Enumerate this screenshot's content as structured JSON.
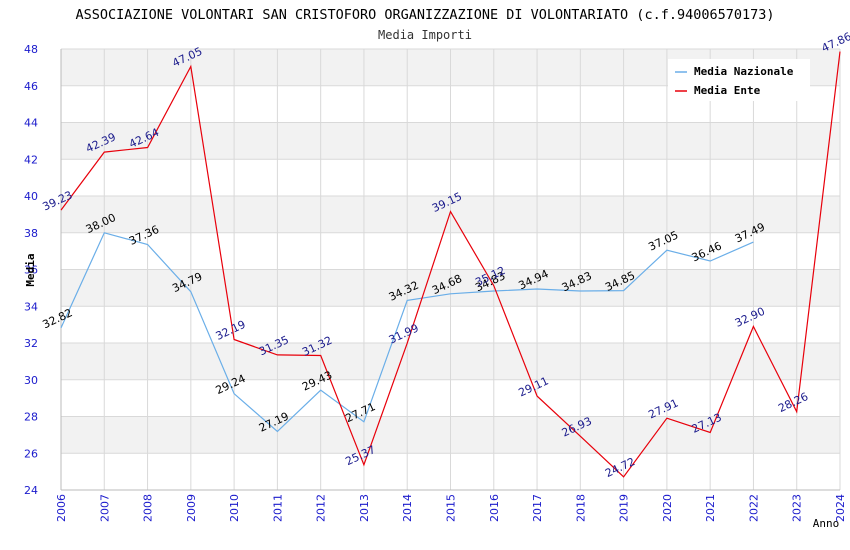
{
  "chart_data": {
    "type": "line",
    "title": "ASSOCIAZIONE VOLONTARI SAN CRISTOFORO ORGANIZZAZIONE DI VOLONTARIATO (c.f.94006570173)",
    "subtitle": "Media Importi",
    "xlabel": "Anno",
    "ylabel": "Media",
    "ylim": [
      24,
      48
    ],
    "yticks": [
      "24",
      "26",
      "28",
      "30",
      "32",
      "34",
      "36",
      "38",
      "40",
      "42",
      "44",
      "46",
      "48"
    ],
    "categories": [
      "2006",
      "2007",
      "2008",
      "2009",
      "2010",
      "2011",
      "2012",
      "2013",
      "2014",
      "2015",
      "2016",
      "2017",
      "2018",
      "2019",
      "2020",
      "2021",
      "2022",
      "2023",
      "2024"
    ],
    "legend_position": "top-right",
    "series": [
      {
        "name": "Media Nazionale",
        "color": "#6aaee8",
        "label_color": "#000000",
        "values": [
          32.82,
          38.0,
          37.36,
          34.79,
          29.24,
          27.19,
          29.43,
          27.71,
          34.32,
          34.68,
          34.83,
          34.94,
          34.83,
          34.85,
          37.05,
          36.46,
          37.49,
          null,
          null
        ],
        "labels": [
          "32.82",
          "38.00",
          "37.36",
          "34.79",
          "29.24",
          "27.19",
          "29.43",
          "27.71",
          "34.32",
          "34.68",
          "34.83",
          "34.94",
          "34.83",
          "34.85",
          "37.05",
          "36.46",
          "37.49",
          null,
          null
        ]
      },
      {
        "name": "Media Ente",
        "color": "#e8000b",
        "label_color": "#1a1a8c",
        "values": [
          39.23,
          42.39,
          42.64,
          47.05,
          32.19,
          31.35,
          31.32,
          25.37,
          31.99,
          39.15,
          35.12,
          29.11,
          26.93,
          24.72,
          27.91,
          27.13,
          32.9,
          28.26,
          47.86
        ],
        "labels": [
          "39.23",
          "42.39",
          "42.64",
          "47.05",
          "32.19",
          "31.35",
          "31.32",
          "25.37",
          "31.99",
          "39.15",
          "35.12",
          "29.11",
          "26.93",
          "24.72",
          "27.91",
          "27.13",
          "32.90",
          "28.26",
          "47.86"
        ]
      }
    ],
    "colors": {
      "axis_label": "#1a1acc",
      "band": "#f2f2f2",
      "grid": "#d9d9d9"
    }
  }
}
